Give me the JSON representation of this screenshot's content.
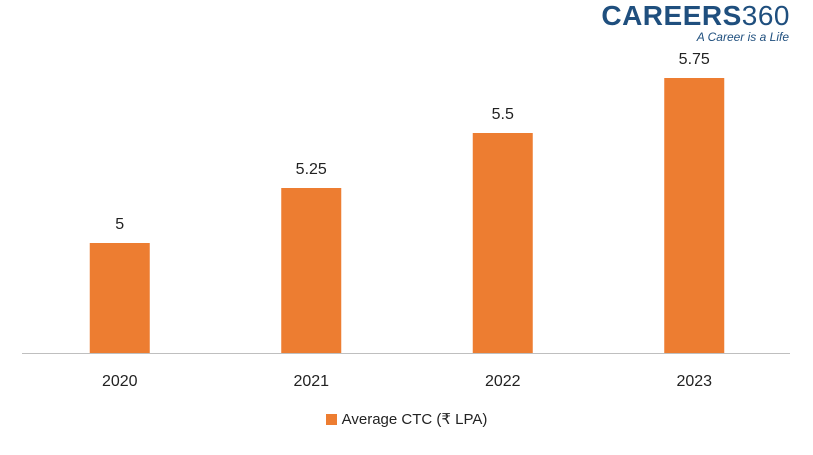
{
  "logo": {
    "brand": "CAREERS",
    "number": "360",
    "tagline": "A Career is a Life"
  },
  "chart_data": {
    "type": "bar",
    "categories": [
      "2020",
      "2021",
      "2022",
      "2023"
    ],
    "series": [
      {
        "name": "Average CTC (₹ LPA)",
        "values": [
          5,
          5.25,
          5.5,
          5.75
        ]
      }
    ],
    "data_labels": [
      "5",
      "5.25",
      "5.5",
      "5.75"
    ],
    "ylim": [
      4.5,
      6
    ],
    "grid": false,
    "legend_position": "bottom",
    "colors": {
      "bar": "#ed7d31",
      "axis": "#bfbfbf",
      "text": "#222222"
    }
  }
}
